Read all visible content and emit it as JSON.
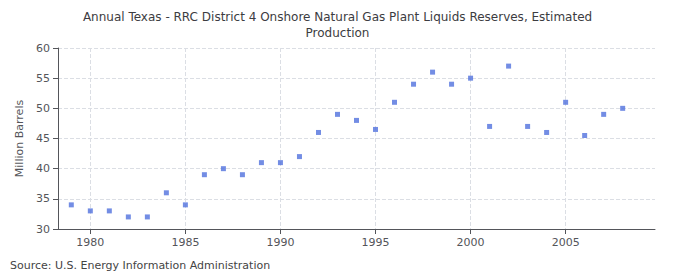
{
  "chart_data": {
    "type": "scatter",
    "title": "Annual Texas - RRC District 4 Onshore Natural Gas Plant Liquids Reserves, Estimated\nProduction",
    "ylabel": "Million Barrels",
    "annotations": [
      "Source: U.S. Energy Information Administration"
    ],
    "x": [
      1979,
      1980,
      1981,
      1982,
      1983,
      1984,
      1985,
      1986,
      1987,
      1988,
      1989,
      1990,
      1991,
      1992,
      1993,
      1994,
      1995,
      1996,
      1997,
      1998,
      1999,
      2000,
      2001,
      2002,
      2003,
      2004,
      2005,
      2006,
      2007,
      2008
    ],
    "values": [
      34.0,
      33.0,
      33.0,
      32.0,
      32.0,
      36.0,
      34.0,
      39.0,
      40.0,
      39.0,
      41.0,
      41.0,
      42.0,
      46.0,
      49.0,
      48.0,
      46.5,
      51.0,
      54.0,
      56.0,
      54.0,
      55.0,
      47.0,
      57.0,
      47.0,
      46.0,
      51.0,
      45.5,
      49.0,
      50.0
    ],
    "xlim": [
      1978.3,
      2009.7
    ],
    "xticks": [
      1980,
      1985,
      1990,
      1995,
      2000,
      2005
    ],
    "ylim": [
      30,
      60
    ],
    "yticks": [
      30,
      35,
      40,
      45,
      50,
      55,
      60
    ],
    "grid": true,
    "marker": "square"
  }
}
